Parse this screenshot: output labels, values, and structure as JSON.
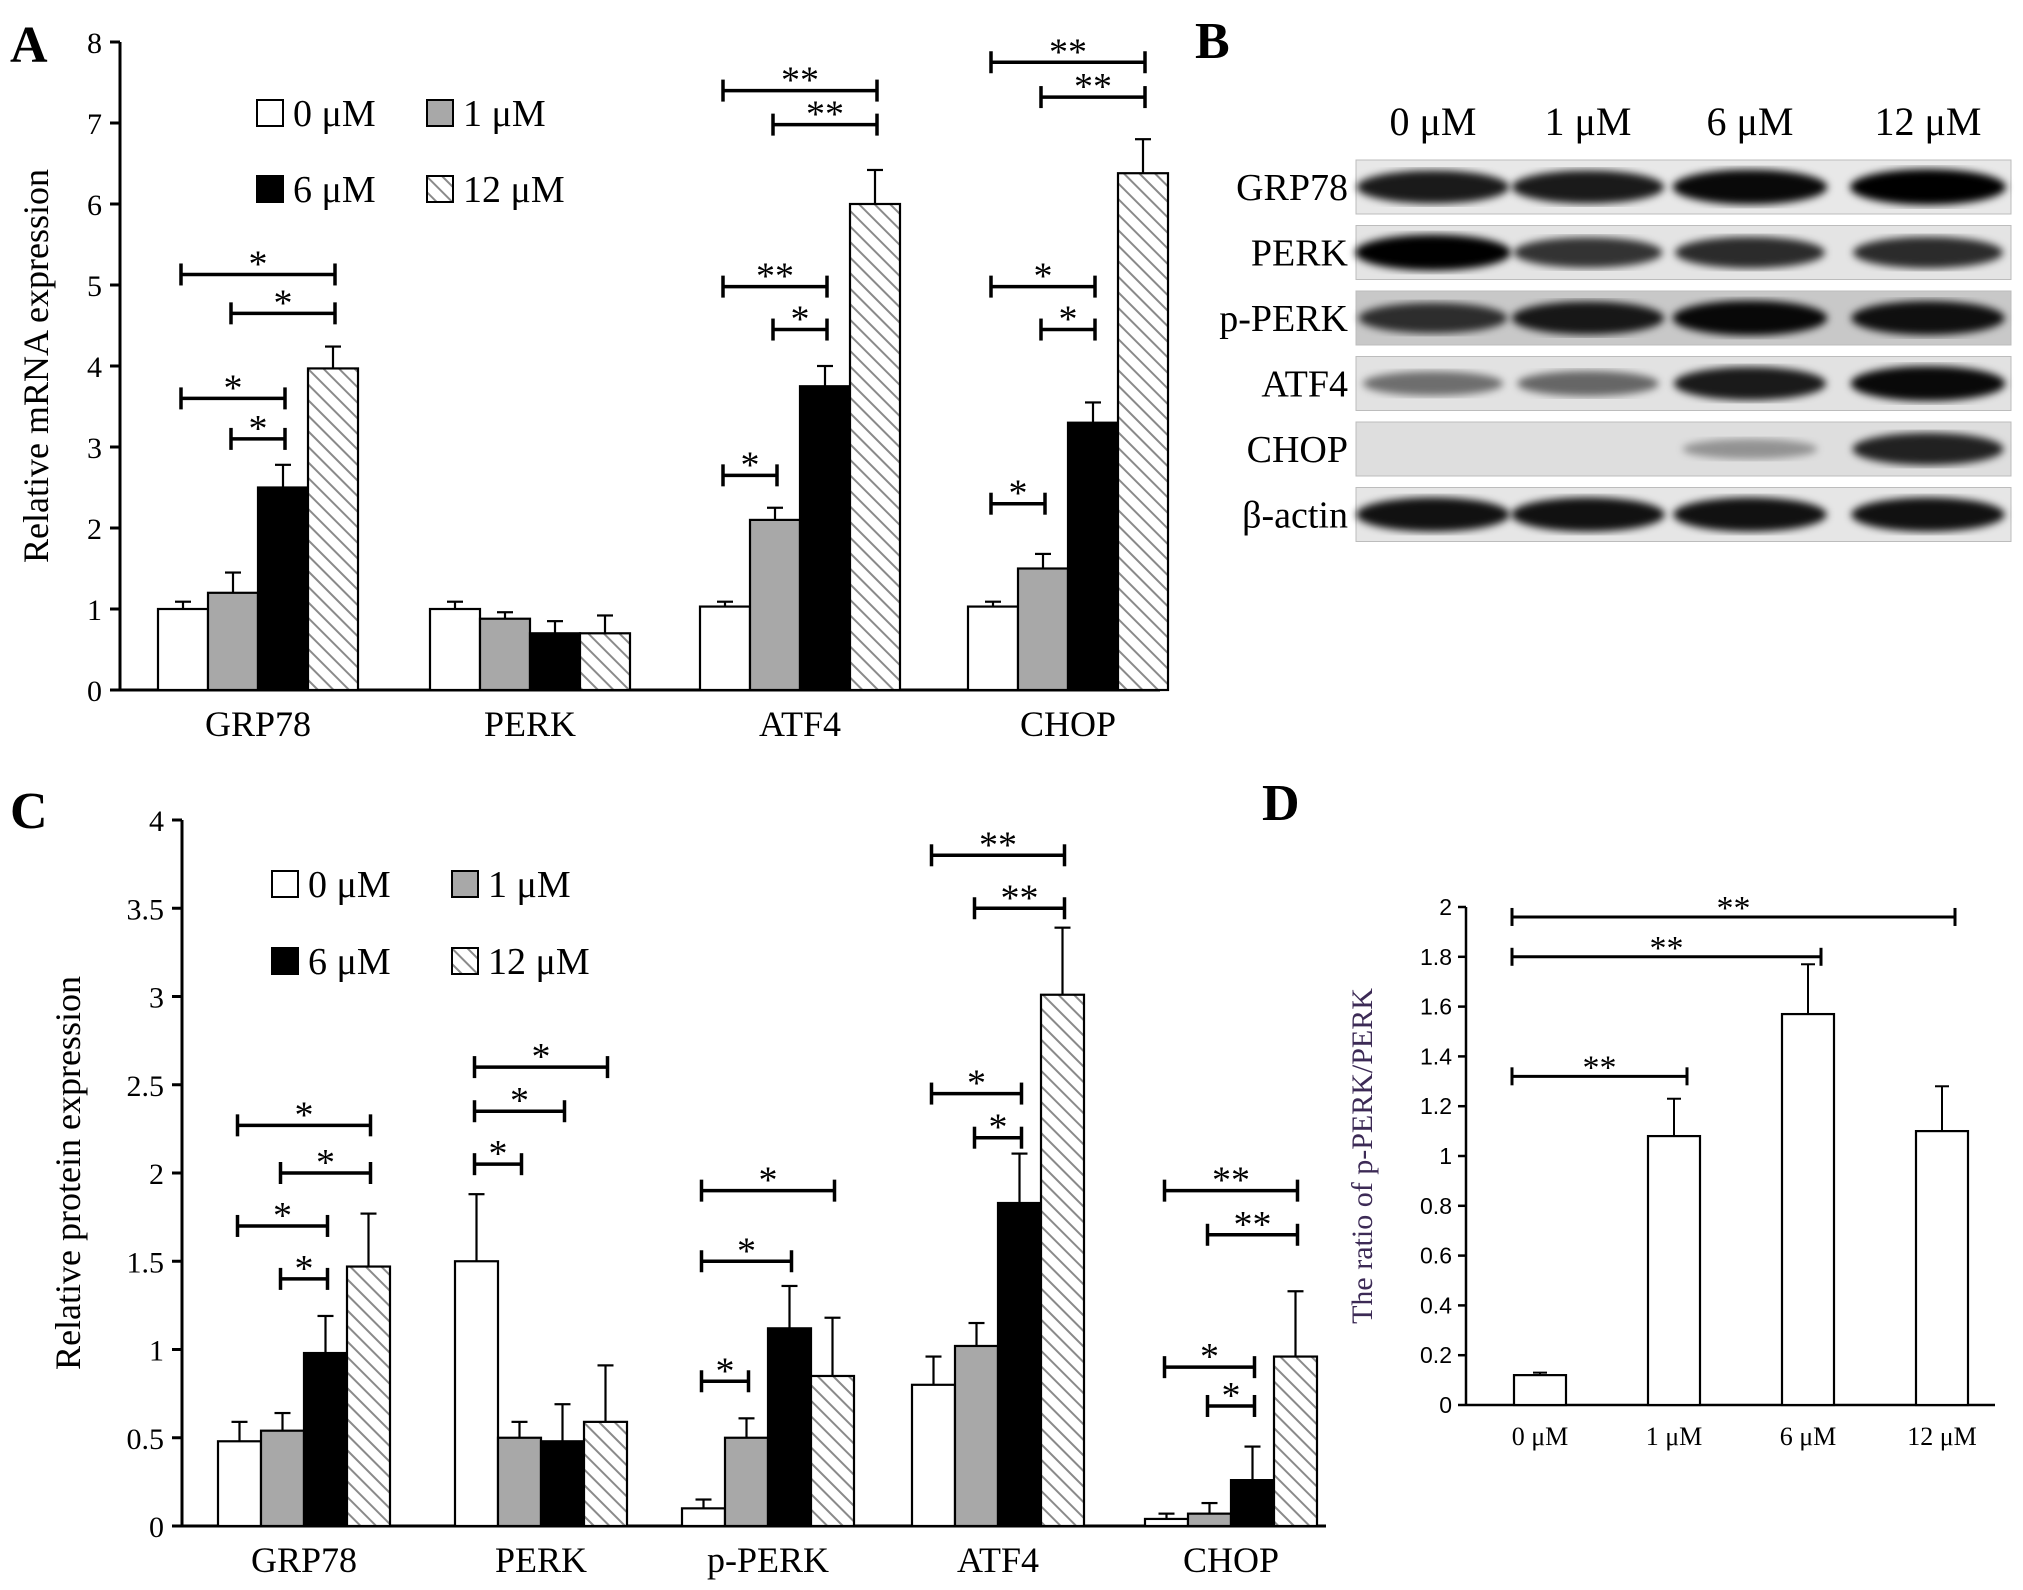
{
  "panels": {
    "A": "A",
    "B": "B",
    "C": "C",
    "D": "D"
  },
  "legend_labels": [
    "0 μM",
    "1 μM",
    "6 μM",
    "12 μM"
  ],
  "colors": {
    "series": [
      "#ffffff",
      "#a8a8a8",
      "#000000",
      "hatch"
    ],
    "stroke": "#000000",
    "axis_label_d": "#3c2a55"
  },
  "blot": {
    "lanes": [
      "0 μM",
      "1 μM",
      "6 μM",
      "12 μM"
    ],
    "rows": [
      {
        "label": "GRP78",
        "intensity": [
          0.85,
          0.85,
          0.95,
          1.0
        ],
        "bg": "#e8e8e8"
      },
      {
        "label": "PERK",
        "intensity": [
          1.0,
          0.7,
          0.75,
          0.75
        ],
        "bg": "#e4e4e4"
      },
      {
        "label": "p-PERK",
        "intensity": [
          0.7,
          0.85,
          0.95,
          0.9
        ],
        "bg": "#c8c8c8"
      },
      {
        "label": "ATF4",
        "intensity": [
          0.35,
          0.4,
          0.85,
          0.95
        ],
        "bg": "#e2e2e2"
      },
      {
        "label": "CHOP",
        "intensity": [
          0.0,
          0.0,
          0.12,
          0.8
        ],
        "bg": "#dedede"
      },
      {
        "label": "β-actin",
        "intensity": [
          0.9,
          0.9,
          0.9,
          0.9
        ],
        "bg": "#e6e6e6"
      }
    ]
  },
  "chart_data": [
    {
      "id": "A",
      "type": "bar",
      "ylabel": "Relative mRNA expression",
      "ylim": [
        0,
        8
      ],
      "yticks": [
        "0",
        "1",
        "2",
        "3",
        "4",
        "5",
        "6",
        "7",
        "8"
      ],
      "categories": [
        "GRP78",
        "PERK",
        "ATF4",
        "CHOP"
      ],
      "series": [
        {
          "name": "0 μM",
          "values": [
            1.0,
            1.0,
            1.03,
            1.03
          ],
          "errors": [
            0.09,
            0.09,
            0.06,
            0.06
          ]
        },
        {
          "name": "1 μM",
          "values": [
            1.2,
            0.88,
            2.1,
            1.5
          ],
          "errors": [
            0.25,
            0.08,
            0.15,
            0.18
          ]
        },
        {
          "name": "6 μM",
          "values": [
            2.5,
            0.7,
            3.75,
            3.3
          ],
          "errors": [
            0.28,
            0.15,
            0.25,
            0.25
          ]
        },
        {
          "name": "12 μM",
          "values": [
            3.97,
            0.7,
            6.0,
            6.38
          ],
          "errors": [
            0.27,
            0.22,
            0.42,
            0.42
          ]
        }
      ],
      "annotations": [
        {
          "cat": 0,
          "from": 0,
          "to": 3,
          "y": 5.13,
          "label": "*"
        },
        {
          "cat": 0,
          "from": 1,
          "to": 3,
          "y": 4.65,
          "label": "*"
        },
        {
          "cat": 0,
          "from": 0,
          "to": 2,
          "y": 3.6,
          "label": "*"
        },
        {
          "cat": 0,
          "from": 1,
          "to": 2,
          "y": 3.1,
          "label": "*"
        },
        {
          "cat": 2,
          "from": 0,
          "to": 3,
          "y": 7.4,
          "label": "**"
        },
        {
          "cat": 2,
          "from": 1,
          "to": 3,
          "y": 6.98,
          "label": "**"
        },
        {
          "cat": 2,
          "from": 0,
          "to": 2,
          "y": 4.98,
          "label": "**"
        },
        {
          "cat": 2,
          "from": 1,
          "to": 2,
          "y": 4.45,
          "label": "*"
        },
        {
          "cat": 2,
          "from": 0,
          "to": 1,
          "y": 2.65,
          "label": "*"
        },
        {
          "cat": 3,
          "from": 0,
          "to": 3,
          "y": 7.75,
          "label": "**"
        },
        {
          "cat": 3,
          "from": 1,
          "to": 3,
          "y": 7.32,
          "label": "**"
        },
        {
          "cat": 3,
          "from": 0,
          "to": 2,
          "y": 4.98,
          "label": "*"
        },
        {
          "cat": 3,
          "from": 1,
          "to": 2,
          "y": 4.45,
          "label": "*"
        },
        {
          "cat": 3,
          "from": 0,
          "to": 1,
          "y": 2.3,
          "label": "*"
        }
      ]
    },
    {
      "id": "C",
      "type": "bar",
      "ylabel": "Relative protein expression",
      "ylim": [
        0,
        4
      ],
      "yticks": [
        "0",
        "0.5",
        "1",
        "1.5",
        "2",
        "2.5",
        "3",
        "3.5",
        "4"
      ],
      "categories": [
        "GRP78",
        "PERK",
        "p-PERK",
        "ATF4",
        "CHOP"
      ],
      "series": [
        {
          "name": "0 μM",
          "values": [
            0.48,
            1.5,
            0.1,
            0.8,
            0.04
          ],
          "errors": [
            0.11,
            0.38,
            0.05,
            0.16,
            0.03
          ]
        },
        {
          "name": "1 μM",
          "values": [
            0.54,
            0.5,
            0.5,
            1.02,
            0.07
          ],
          "errors": [
            0.1,
            0.09,
            0.11,
            0.13,
            0.06
          ]
        },
        {
          "name": "6 μM",
          "values": [
            0.98,
            0.48,
            1.12,
            1.83,
            0.26
          ],
          "errors": [
            0.21,
            0.21,
            0.24,
            0.28,
            0.19
          ]
        },
        {
          "name": "12 μM",
          "values": [
            1.47,
            0.59,
            0.85,
            3.01,
            0.96
          ],
          "errors": [
            0.3,
            0.32,
            0.33,
            0.38,
            0.37
          ]
        }
      ],
      "annotations": [
        {
          "cat": 0,
          "from": 0,
          "to": 3,
          "y": 2.27,
          "label": "*"
        },
        {
          "cat": 0,
          "from": 1,
          "to": 3,
          "y": 2.0,
          "label": "*"
        },
        {
          "cat": 0,
          "from": 0,
          "to": 2,
          "y": 1.7,
          "label": "*"
        },
        {
          "cat": 0,
          "from": 1,
          "to": 2,
          "y": 1.4,
          "label": "*"
        },
        {
          "cat": 1,
          "from": 0,
          "to": 3,
          "y": 2.6,
          "label": "*"
        },
        {
          "cat": 1,
          "from": 0,
          "to": 2,
          "y": 2.35,
          "label": "*"
        },
        {
          "cat": 1,
          "from": 0,
          "to": 1,
          "y": 2.05,
          "label": "*"
        },
        {
          "cat": 2,
          "from": 0,
          "to": 3,
          "y": 1.9,
          "label": "*"
        },
        {
          "cat": 2,
          "from": 0,
          "to": 2,
          "y": 1.5,
          "label": "*"
        },
        {
          "cat": 2,
          "from": 0,
          "to": 1,
          "y": 0.82,
          "label": "*"
        },
        {
          "cat": 3,
          "from": 0,
          "to": 3,
          "y": 3.8,
          "label": "**"
        },
        {
          "cat": 3,
          "from": 1,
          "to": 3,
          "y": 3.5,
          "label": "**"
        },
        {
          "cat": 3,
          "from": 0,
          "to": 2,
          "y": 2.45,
          "label": "*"
        },
        {
          "cat": 3,
          "from": 1,
          "to": 2,
          "y": 2.2,
          "label": "*"
        },
        {
          "cat": 4,
          "from": 0,
          "to": 3,
          "y": 1.9,
          "label": "**"
        },
        {
          "cat": 4,
          "from": 1,
          "to": 3,
          "y": 1.65,
          "label": "**"
        },
        {
          "cat": 4,
          "from": 0,
          "to": 2,
          "y": 0.9,
          "label": "*"
        },
        {
          "cat": 4,
          "from": 1,
          "to": 2,
          "y": 0.68,
          "label": "*"
        }
      ]
    },
    {
      "id": "D",
      "type": "bar",
      "ylabel": "The ratio of p-PERK/PERK",
      "ylim": [
        0,
        2
      ],
      "yticks": [
        "0",
        "0.2",
        "0.4",
        "0.6",
        "0.8",
        "1",
        "1.2",
        "1.4",
        "1.6",
        "1.8",
        "2"
      ],
      "categories": [
        "0 μM",
        "1 μM",
        "6 μM",
        "12 μM"
      ],
      "values": [
        0.12,
        1.08,
        1.57,
        1.1
      ],
      "errors": [
        0.01,
        0.15,
        0.2,
        0.18
      ],
      "annotations": [
        {
          "from": 0,
          "to": 3,
          "y": 1.96,
          "label": "**"
        },
        {
          "from": 0,
          "to": 2,
          "y": 1.8,
          "label": "**"
        },
        {
          "from": 0,
          "to": 1,
          "y": 1.32,
          "label": "**"
        }
      ]
    }
  ]
}
